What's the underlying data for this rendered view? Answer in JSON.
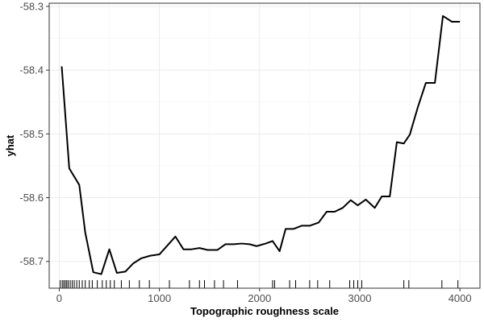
{
  "chart_data": {
    "type": "line",
    "xlabel": "Topographic roughness scale",
    "ylabel": "yhat",
    "xlim": [
      -100,
      4200
    ],
    "ylim": [
      -58.742,
      -58.295
    ],
    "xticks": [
      0,
      1000,
      2000,
      3000,
      4000
    ],
    "yticks": [
      -58.3,
      -58.4,
      -58.5,
      -58.6,
      -58.7
    ],
    "xtick_labels": [
      "0",
      "1000",
      "2000",
      "3000",
      "4000"
    ],
    "ytick_labels": [
      "-58.3",
      "-58.4",
      "-58.5",
      "-58.6",
      "-58.7"
    ],
    "grid": true,
    "series": [
      {
        "x": [
          25,
          100,
          200,
          260,
          340,
          420,
          500,
          575,
          660,
          740,
          820,
          910,
          1000,
          1080,
          1160,
          1240,
          1320,
          1400,
          1480,
          1580,
          1660,
          1740,
          1820,
          1900,
          1970,
          2060,
          2130,
          2200,
          2260,
          2340,
          2420,
          2500,
          2590,
          2670,
          2750,
          2830,
          2910,
          2980,
          3060,
          3150,
          3220,
          3300,
          3370,
          3440,
          3500,
          3580,
          3660,
          3750,
          3830,
          3920,
          4000
        ],
        "y": [
          -58.394,
          -58.554,
          -58.58,
          -58.655,
          -58.717,
          -58.72,
          -58.681,
          -58.718,
          -58.716,
          -58.703,
          -58.695,
          -58.691,
          -58.689,
          -58.675,
          -58.661,
          -58.681,
          -58.681,
          -58.679,
          -58.682,
          -58.682,
          -58.673,
          -58.673,
          -58.672,
          -58.673,
          -58.676,
          -58.672,
          -58.668,
          -58.684,
          -58.649,
          -58.649,
          -58.644,
          -58.644,
          -58.639,
          -58.622,
          -58.622,
          -58.616,
          -58.604,
          -58.612,
          -58.603,
          -58.616,
          -58.598,
          -58.598,
          -58.513,
          -58.515,
          -58.501,
          -58.458,
          -58.42,
          -58.42,
          -58.315,
          -58.324,
          -58.324
        ]
      }
    ],
    "rug": [
      10,
      30,
      45,
      60,
      75,
      90,
      110,
      130,
      150,
      175,
      200,
      230,
      260,
      300,
      330,
      380,
      430,
      470,
      510,
      550,
      620,
      700,
      800,
      900,
      1100,
      1300,
      1400,
      1450,
      1550,
      1640,
      1780,
      2130,
      2150,
      2300,
      2360,
      2500,
      2580,
      2700,
      2900,
      2940,
      2980,
      3020,
      3440,
      3490,
      3820,
      3980
    ]
  }
}
